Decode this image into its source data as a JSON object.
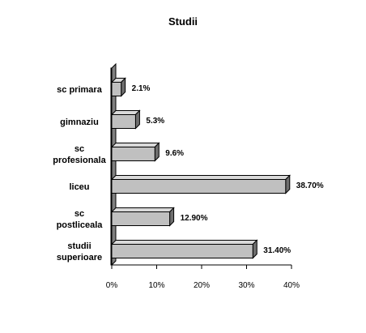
{
  "chart_data": {
    "type": "bar",
    "orientation": "horizontal",
    "style": "3d",
    "title": "Studii",
    "categories": [
      [
        "sc primara"
      ],
      [
        "gimnaziu"
      ],
      [
        "sc",
        "profesionala"
      ],
      [
        "liceu"
      ],
      [
        "sc",
        "postliceala"
      ],
      [
        "studii",
        "superioare"
      ]
    ],
    "values": [
      2.1,
      5.3,
      9.6,
      38.7,
      12.9,
      31.4
    ],
    "data_labels": [
      "2.1%",
      "5.3%",
      "9.6%",
      "38.70%",
      "12.90%",
      "31.40%"
    ],
    "xlim": [
      0,
      40
    ],
    "xticks": [
      0,
      10,
      20,
      30,
      40
    ],
    "xtick_labels": [
      "0%",
      "10%",
      "20%",
      "30%",
      "40%"
    ],
    "grid": false,
    "legend": false,
    "colors": {
      "bar_front": "#c0c0c0",
      "bar_top": "#d9d9d9",
      "bar_side": "#6e6e6e",
      "wall": "#c0c0c0",
      "wall_side": "#808080",
      "outline": "#000000"
    }
  }
}
